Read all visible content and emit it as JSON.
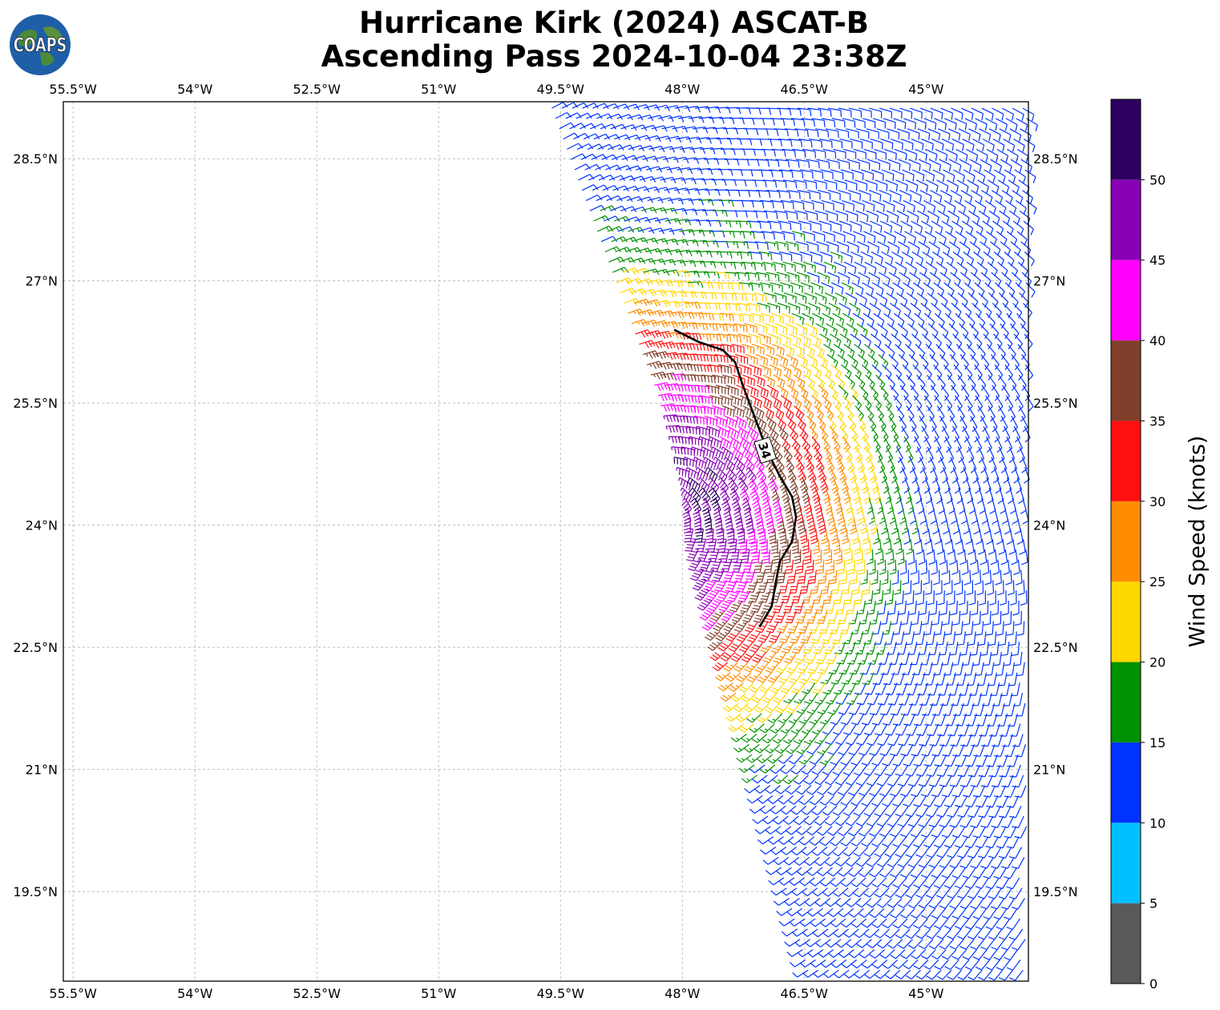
{
  "title": {
    "line1": "Hurricane Kirk (2024) ASCAT-B",
    "line2": "Ascending Pass 2024-10-04 23:38Z"
  },
  "logo": {
    "text": "COAPS",
    "icon": "globe-icon"
  },
  "colorbar": {
    "label": "Wind Speed (knots)",
    "ticks": [
      "0",
      "5",
      "10",
      "15",
      "20",
      "25",
      "30",
      "35",
      "40",
      "45",
      "50"
    ],
    "bins": [
      {
        "min": 0,
        "max": 5,
        "color": "#595959"
      },
      {
        "min": 5,
        "max": 10,
        "color": "#00bfff"
      },
      {
        "min": 10,
        "max": 15,
        "color": "#0033ff"
      },
      {
        "min": 15,
        "max": 20,
        "color": "#009100"
      },
      {
        "min": 20,
        "max": 25,
        "color": "#ffd700"
      },
      {
        "min": 25,
        "max": 30,
        "color": "#ff8c00"
      },
      {
        "min": 30,
        "max": 35,
        "color": "#ff0f0f"
      },
      {
        "min": 35,
        "max": 40,
        "color": "#803f2a"
      },
      {
        "min": 40,
        "max": 45,
        "color": "#ff00ff"
      },
      {
        "min": 45,
        "max": 50,
        "color": "#8800b3"
      },
      {
        "min": 50,
        "max": 55,
        "color": "#2d0060"
      }
    ]
  },
  "chart_data": {
    "type": "scatter",
    "subtype": "wind-barb map",
    "xlim": [
      -55.62,
      -43.74
    ],
    "ylim": [
      18.4,
      29.2
    ],
    "x_ticks": [
      {
        "value": -55.5,
        "label": "55.5°W"
      },
      {
        "value": -54.0,
        "label": "54°W"
      },
      {
        "value": -52.5,
        "label": "52.5°W"
      },
      {
        "value": -51.0,
        "label": "51°W"
      },
      {
        "value": -49.5,
        "label": "49.5°W"
      },
      {
        "value": -48.0,
        "label": "48°W"
      },
      {
        "value": -46.5,
        "label": "46.5°W"
      },
      {
        "value": -45.0,
        "label": "45°W"
      }
    ],
    "y_ticks": [
      {
        "value": 28.5,
        "label": "28.5°N"
      },
      {
        "value": 27.0,
        "label": "27°N"
      },
      {
        "value": 25.5,
        "label": "25.5°N"
      },
      {
        "value": 24.0,
        "label": "24°N"
      },
      {
        "value": 22.5,
        "label": "22.5°N"
      },
      {
        "value": 21.0,
        "label": "21°N"
      },
      {
        "value": 19.5,
        "label": "19.5°N"
      }
    ],
    "grid": true,
    "swath": {
      "left_edge": [
        [
          -49.6,
          29.1
        ],
        [
          -48.3,
          25.6
        ],
        [
          -46.6,
          19.1
        ]
      ],
      "right_edge": [
        -43.74
      ]
    },
    "contour_34kt": {
      "label": "34",
      "points": [
        [
          -48.1,
          26.4
        ],
        [
          -47.8,
          26.25
        ],
        [
          -47.5,
          26.15
        ],
        [
          -47.35,
          26.0
        ],
        [
          -47.25,
          25.7
        ],
        [
          -47.1,
          25.3
        ],
        [
          -46.95,
          24.9
        ],
        [
          -46.8,
          24.6
        ],
        [
          -46.65,
          24.35
        ],
        [
          -46.6,
          24.1
        ],
        [
          -46.65,
          23.8
        ],
        [
          -46.8,
          23.55
        ],
        [
          -46.85,
          23.3
        ],
        [
          -46.9,
          23.0
        ],
        [
          -47.05,
          22.75
        ]
      ]
    },
    "wind_field": {
      "center": [
        -48.4,
        24.2
      ],
      "description": "cyclonic flow; speeds from ~12 kt on swath periphery to ~50 kt near storm core"
    }
  }
}
